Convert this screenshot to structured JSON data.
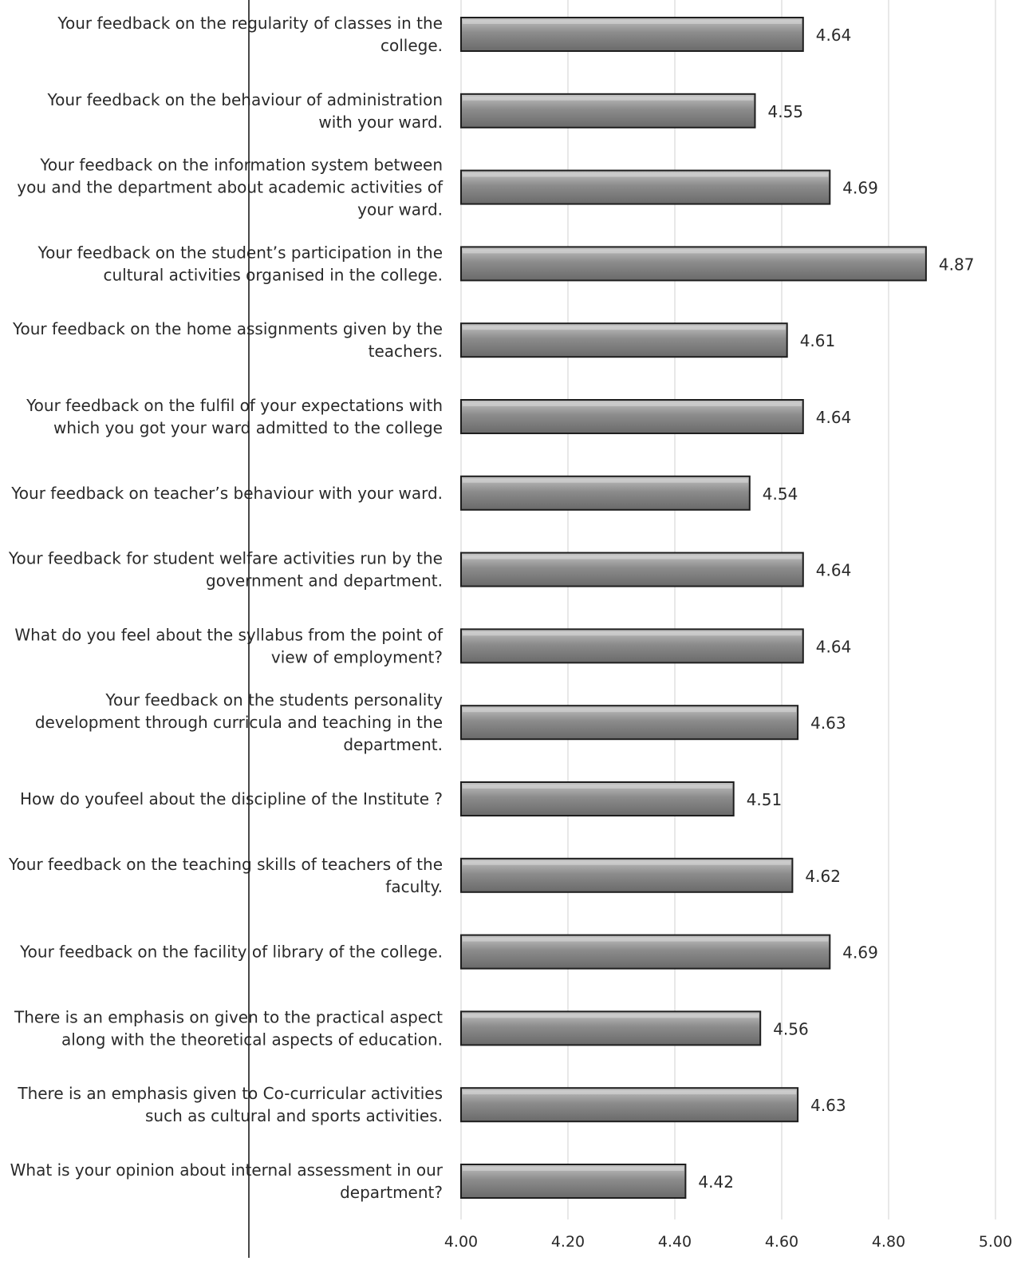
{
  "chart_data": {
    "type": "bar",
    "orientation": "horizontal",
    "categories": [
      "Your feedback on the regularity of classes in the college.",
      "Your feedback on the behaviour of administration with your ward.",
      "Your feedback on the information system between you and the department about academic activities of your ward.",
      "Your feedback on the student’s participation in the cultural activities organised in the college.",
      "Your feedback on the home assignments given by the teachers.",
      "Your feedback on the fulfil of your expectations with which you got your ward admitted to the college",
      "Your feedback on teacher’s behaviour with your ward.",
      "Your feedback for student welfare activities run by the government and department.",
      "What do you feel about the syllabus from the point of view of employment?",
      "Your feedback on the students personality development through curricula and teaching in the department.",
      "How do youfeel about the discipline of the Institute ?",
      "Your feedback on the teaching skills of teachers of the faculty.",
      "Your feedback on the facility of library of the college.",
      "There is an emphasis on given to the practical aspect along with the theoretical aspects of education.",
      "There is an emphasis given to Co-curricular activities such as cultural and sports activities.",
      "What is your opinion about internal assessment in our department?"
    ],
    "label_lines": [
      [
        "Your feedback on the regularity of classes in the",
        "college."
      ],
      [
        "Your feedback on the behaviour of administration",
        "with your ward."
      ],
      [
        "Your feedback on the information system between",
        "you and the department about academic activities of",
        "your ward."
      ],
      [
        "Your feedback on the student’s participation in the",
        "cultural activities organised in the college."
      ],
      [
        "Your feedback on the home assignments given by the",
        "teachers."
      ],
      [
        "Your feedback on the fulfil of your expectations with",
        "which you got your ward admitted to the college"
      ],
      [
        "Your feedback on teacher’s behaviour with your ward."
      ],
      [
        "Your feedback for student welfare activities run by the",
        "government and department."
      ],
      [
        "What do you feel about the syllabus from the point of",
        "view of employment?"
      ],
      [
        "Your feedback on the students personality",
        "development through curricula and teaching in the",
        "department."
      ],
      [
        "How do youfeel about the discipline of the Institute ?"
      ],
      [
        "Your feedback on the teaching skills of teachers of the",
        "faculty."
      ],
      [
        "Your feedback on the facility of library of the college."
      ],
      [
        "There is an emphasis on given to the practical aspect",
        "along with the theoretical aspects of education."
      ],
      [
        "There is an emphasis given to Co-curricular activities",
        "such as cultural and sports activities."
      ],
      [
        "What is your opinion about internal assessment in our",
        "department?"
      ]
    ],
    "values": [
      4.64,
      4.55,
      4.69,
      4.87,
      4.61,
      4.64,
      4.54,
      4.64,
      4.64,
      4.63,
      4.51,
      4.62,
      4.69,
      4.56,
      4.63,
      4.42
    ],
    "value_labels": [
      "4.64",
      "4.55",
      "4.69",
      "4.87",
      "4.61",
      "4.64",
      "4.54",
      "4.64",
      "4.64",
      "4.63",
      "4.51",
      "4.62",
      "4.69",
      "4.56",
      "4.63",
      "4.42"
    ],
    "x_ticks": [
      4.0,
      4.2,
      4.4,
      4.6,
      4.8,
      5.0
    ],
    "x_tick_labels": [
      "4.00",
      "4.20",
      "4.40",
      "4.60",
      "4.80",
      "5.00"
    ],
    "xlim": [
      4.0,
      5.0
    ],
    "title": "",
    "xlabel": "",
    "ylabel": "",
    "grid": true,
    "legend": "none",
    "colors": {
      "bar_fill": "#8c8c8c",
      "bar_highlight": "#c4c4c4",
      "bar_stroke": "#1e1e1e",
      "gridline": "#d2d2d2",
      "text": "#2a2a2a"
    }
  }
}
